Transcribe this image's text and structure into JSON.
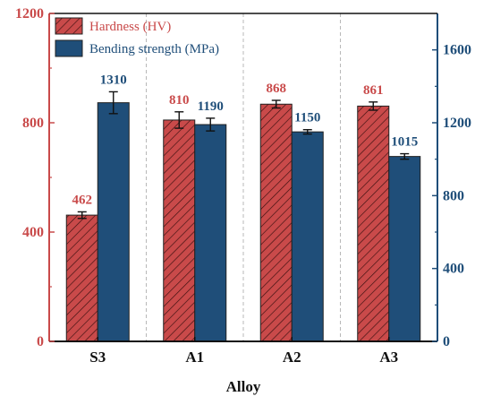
{
  "chart_data": {
    "type": "bar",
    "categories": [
      "S3",
      "A1",
      "A2",
      "A3"
    ],
    "xlabel": "Alloy",
    "series": [
      {
        "name": "Hardness (HV)",
        "axis": "left",
        "color": "#c94a4a",
        "hatch": "diagonal",
        "values": [
          462,
          810,
          868,
          861
        ],
        "errors": [
          12,
          30,
          14,
          15
        ],
        "value_labels": [
          "462",
          "810",
          "868",
          "861"
        ]
      },
      {
        "name": "Bending strength (MPa)",
        "axis": "right",
        "color": "#1f4e79",
        "hatch": "none",
        "values": [
          1310,
          1190,
          1150,
          1015
        ],
        "errors": [
          60,
          35,
          12,
          15
        ],
        "value_labels": [
          "1310",
          "1190",
          "1150",
          "1015"
        ]
      }
    ],
    "left_axis": {
      "ylim": [
        0,
        1200
      ],
      "ticks": [
        0,
        400,
        800,
        1200
      ],
      "tick_labels": [
        "0",
        "400",
        "800",
        "1200"
      ],
      "color": "#c94a4a"
    },
    "right_axis": {
      "ylim": [
        0,
        1800
      ],
      "ticks": [
        0,
        400,
        800,
        1200,
        1600
      ],
      "tick_labels": [
        "0",
        "400",
        "800",
        "1200",
        "1600"
      ],
      "color": "#1f4e79"
    },
    "legend_position": "top-left",
    "grid": "vertical dashed separators between categories"
  }
}
